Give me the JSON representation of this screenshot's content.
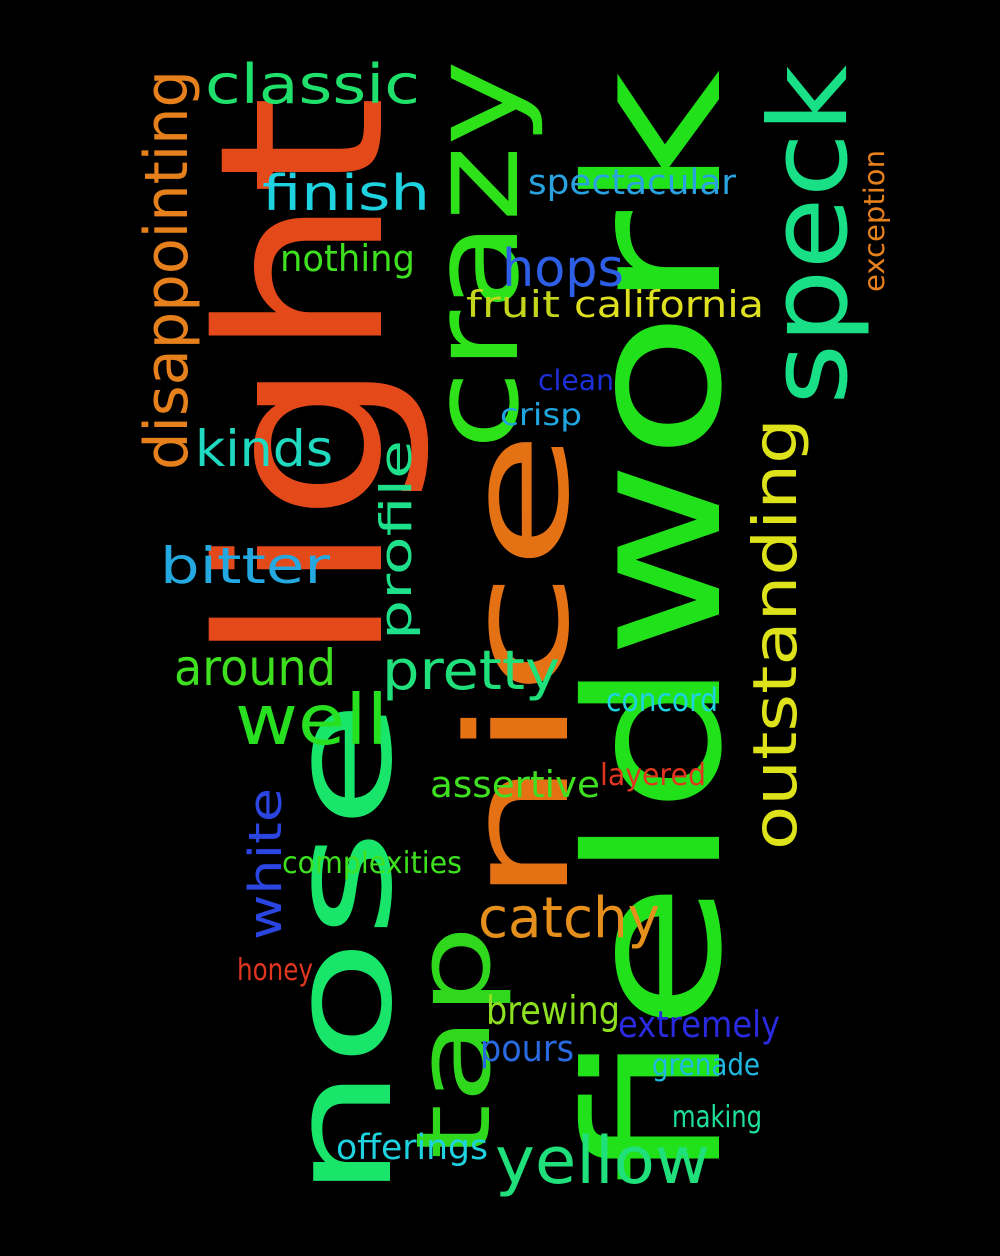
{
  "words": [
    {
      "id": "fieldwork",
      "text": "fieldwork",
      "color": "#21e21a",
      "rotated": true
    },
    {
      "id": "nose",
      "text": "nose",
      "color": "#19e56a",
      "rotated": true
    },
    {
      "id": "nice",
      "text": "nice",
      "color": "#e47113",
      "rotated": true
    },
    {
      "id": "light",
      "text": "light",
      "color": "#e4491a",
      "rotated": true
    },
    {
      "id": "crazy",
      "text": "crazy",
      "color": "#2ee21a",
      "rotated": true
    },
    {
      "id": "speck",
      "text": "speck",
      "color": "#19e086",
      "rotated": true
    },
    {
      "id": "tap",
      "text": "tap",
      "color": "#2fd81d",
      "rotated": true
    },
    {
      "id": "outstanding",
      "text": "outstanding",
      "color": "#dde21a",
      "rotated": true
    },
    {
      "id": "disappointing",
      "text": "disappointing",
      "color": "#e5801c",
      "rotated": true
    },
    {
      "id": "classic",
      "text": "classic",
      "color": "#1fe06a",
      "rotated": false
    },
    {
      "id": "finish",
      "text": "finish",
      "color": "#1fd2e0",
      "rotated": false
    },
    {
      "id": "hops",
      "text": "hops",
      "color": "#2d5ee6",
      "rotated": false
    },
    {
      "id": "spectacular",
      "text": "spectacular",
      "color": "#2aa2e0",
      "rotated": false
    },
    {
      "id": "exception",
      "text": "exception",
      "color": "#e5801c",
      "rotated": true
    },
    {
      "id": "nothing",
      "text": "nothing",
      "color": "#3ee01f",
      "rotated": false
    },
    {
      "id": "fruit",
      "text": "fruit",
      "color": "#c3d61c",
      "rotated": false
    },
    {
      "id": "california",
      "text": "california",
      "color": "#dfe01f",
      "rotated": false
    },
    {
      "id": "clean",
      "text": "clean",
      "color": "#1c2fd8",
      "rotated": false
    },
    {
      "id": "crisp",
      "text": "crisp",
      "color": "#1fa6e0",
      "rotated": false
    },
    {
      "id": "kinds",
      "text": "kinds",
      "color": "#1fd9c0",
      "rotated": false
    },
    {
      "id": "profile",
      "text": "profile",
      "color": "#1fe08a",
      "rotated": true
    },
    {
      "id": "bitter",
      "text": "bitter",
      "color": "#23a9e0",
      "rotated": false
    },
    {
      "id": "around",
      "text": "around",
      "color": "#3ee01f",
      "rotated": false
    },
    {
      "id": "pretty",
      "text": "pretty",
      "color": "#1fe07a",
      "rotated": false
    },
    {
      "id": "well",
      "text": "well",
      "color": "#27e01f",
      "rotated": false
    },
    {
      "id": "concord",
      "text": "concord",
      "color": "#1fd2e0",
      "rotated": false
    },
    {
      "id": "layered",
      "text": "layered",
      "color": "#e0361f",
      "rotated": false
    },
    {
      "id": "assertive",
      "text": "assertive",
      "color": "#3ee01f",
      "rotated": false
    },
    {
      "id": "white",
      "text": "white",
      "color": "#2a45e0",
      "rotated": true
    },
    {
      "id": "complexities",
      "text": "complexities",
      "color": "#3ee01f",
      "rotated": false
    },
    {
      "id": "catchy",
      "text": "catchy",
      "color": "#e5901c",
      "rotated": false
    },
    {
      "id": "honey",
      "text": "honey",
      "color": "#e0361f",
      "rotated": false
    },
    {
      "id": "brewing",
      "text": "brewing",
      "color": "#8ce01f",
      "rotated": false
    },
    {
      "id": "extremely",
      "text": "extremely",
      "color": "#2a2ae0",
      "rotated": false
    },
    {
      "id": "pours",
      "text": "pours",
      "color": "#2a6ae0",
      "rotated": false
    },
    {
      "id": "grenade",
      "text": "grenade",
      "color": "#1fb8e0",
      "rotated": false
    },
    {
      "id": "making",
      "text": "making",
      "color": "#1fe09a",
      "rotated": false
    },
    {
      "id": "offerings",
      "text": "offerings",
      "color": "#1fd2e0",
      "rotated": false
    },
    {
      "id": "yellow",
      "text": "yellow",
      "color": "#1fe07a",
      "rotated": false
    }
  ]
}
